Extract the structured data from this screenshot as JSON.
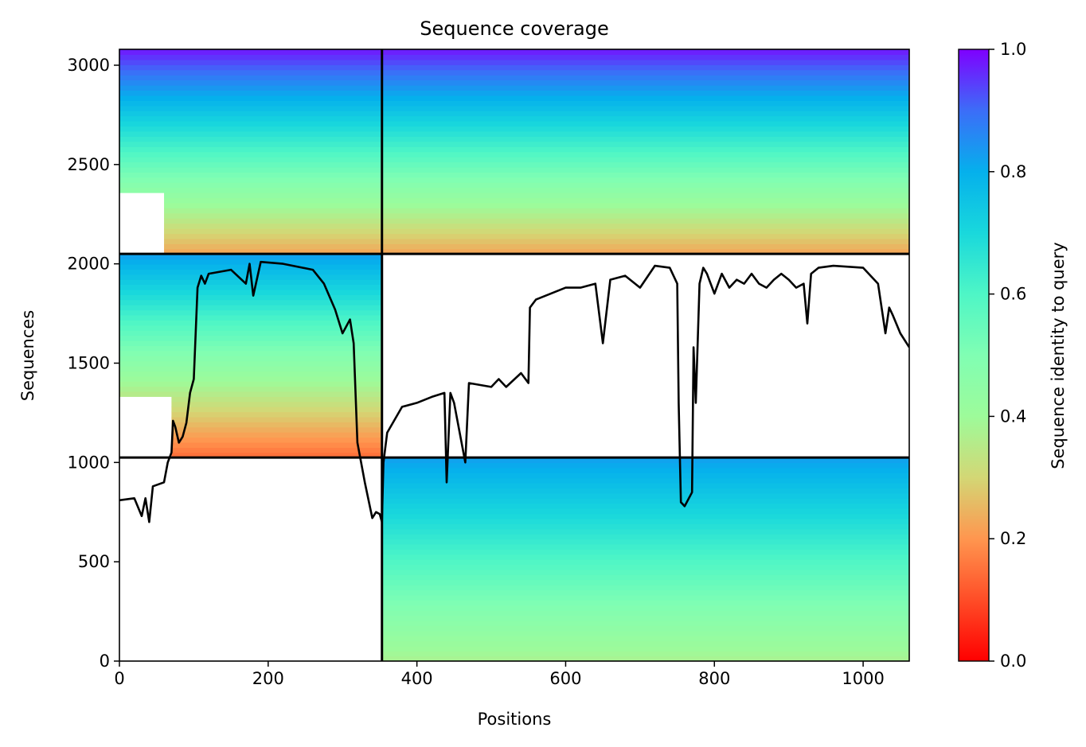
{
  "chart_data": {
    "type": "heatmap",
    "title": "Sequence coverage",
    "xlabel": "Positions",
    "ylabel": "Sequences",
    "xlim": [
      0,
      1062
    ],
    "ylim": [
      0,
      3080
    ],
    "x_ticks": [
      0,
      200,
      400,
      600,
      800,
      1000
    ],
    "y_ticks": [
      0,
      500,
      1000,
      1500,
      2000,
      2500,
      3000
    ],
    "grid": false,
    "colormap": "rainbow",
    "colorbar": {
      "label": "Sequence identity to query",
      "range": [
        0,
        1
      ],
      "ticks": [
        0.0,
        0.2,
        0.4,
        0.6,
        0.8,
        1.0
      ],
      "tick_labels": [
        "0.0",
        "0.2",
        "0.4",
        "0.6",
        "0.8",
        "1.0"
      ]
    },
    "blocks": [
      {
        "x_range": [
          0,
          353
        ],
        "y_range": [
          2050,
          3080
        ],
        "identity_bottom": 0.23,
        "identity_top": 0.97,
        "coverage_start_x": 60
      },
      {
        "x_range": [
          353,
          1062
        ],
        "y_range": [
          2050,
          3080
        ],
        "identity_bottom": 0.23,
        "identity_top": 0.97,
        "coverage_start_x": 353
      },
      {
        "x_range": [
          0,
          353
        ],
        "y_range": [
          1025,
          2050
        ],
        "identity_bottom": 0.15,
        "identity_top": 0.82,
        "coverage_start_x": 70
      },
      {
        "x_range": [
          353,
          1062
        ],
        "y_range": [
          0,
          1025
        ],
        "identity_bottom": 0.38,
        "identity_top": 0.82,
        "coverage_start_x": 353
      }
    ],
    "divider_lines": {
      "vertical_x": [
        353
      ],
      "horizontal_y": [
        1025,
        2050
      ]
    },
    "coverage_line": {
      "x": [
        0,
        20,
        30,
        35,
        40,
        45,
        60,
        65,
        70,
        72,
        75,
        80,
        85,
        90,
        95,
        100,
        105,
        110,
        115,
        120,
        150,
        170,
        175,
        180,
        190,
        220,
        260,
        275,
        290,
        300,
        310,
        315,
        320,
        330,
        340,
        345,
        350,
        353,
        355,
        360,
        380,
        400,
        420,
        437,
        440,
        445,
        450,
        465,
        470,
        500,
        510,
        520,
        540,
        550,
        552,
        560,
        580,
        600,
        620,
        640,
        650,
        660,
        680,
        700,
        720,
        740,
        750,
        752,
        755,
        760,
        770,
        772,
        775,
        780,
        785,
        790,
        800,
        810,
        820,
        830,
        840,
        850,
        860,
        870,
        880,
        890,
        900,
        910,
        920,
        925,
        930,
        940,
        960,
        1000,
        1020,
        1030,
        1035,
        1040,
        1050,
        1062
      ],
      "y": [
        810,
        820,
        730,
        820,
        700,
        880,
        900,
        1000,
        1050,
        1210,
        1180,
        1100,
        1130,
        1200,
        1350,
        1420,
        1880,
        1940,
        1900,
        1950,
        1970,
        1900,
        2000,
        1840,
        2010,
        2000,
        1970,
        1900,
        1770,
        1650,
        1720,
        1600,
        1100,
        900,
        720,
        750,
        740,
        700,
        1000,
        1150,
        1280,
        1300,
        1330,
        1350,
        900,
        1350,
        1300,
        1000,
        1400,
        1380,
        1420,
        1380,
        1450,
        1400,
        1780,
        1820,
        1850,
        1880,
        1880,
        1900,
        1600,
        1920,
        1940,
        1880,
        1990,
        1980,
        1900,
        1300,
        800,
        780,
        850,
        1580,
        1300,
        1900,
        1980,
        1950,
        1850,
        1950,
        1880,
        1920,
        1900,
        1950,
        1900,
        1880,
        1920,
        1950,
        1920,
        1880,
        1900,
        1700,
        1950,
        1980,
        1990,
        1980,
        1900,
        1650,
        1780,
        1740,
        1650,
        1580
      ]
    }
  }
}
